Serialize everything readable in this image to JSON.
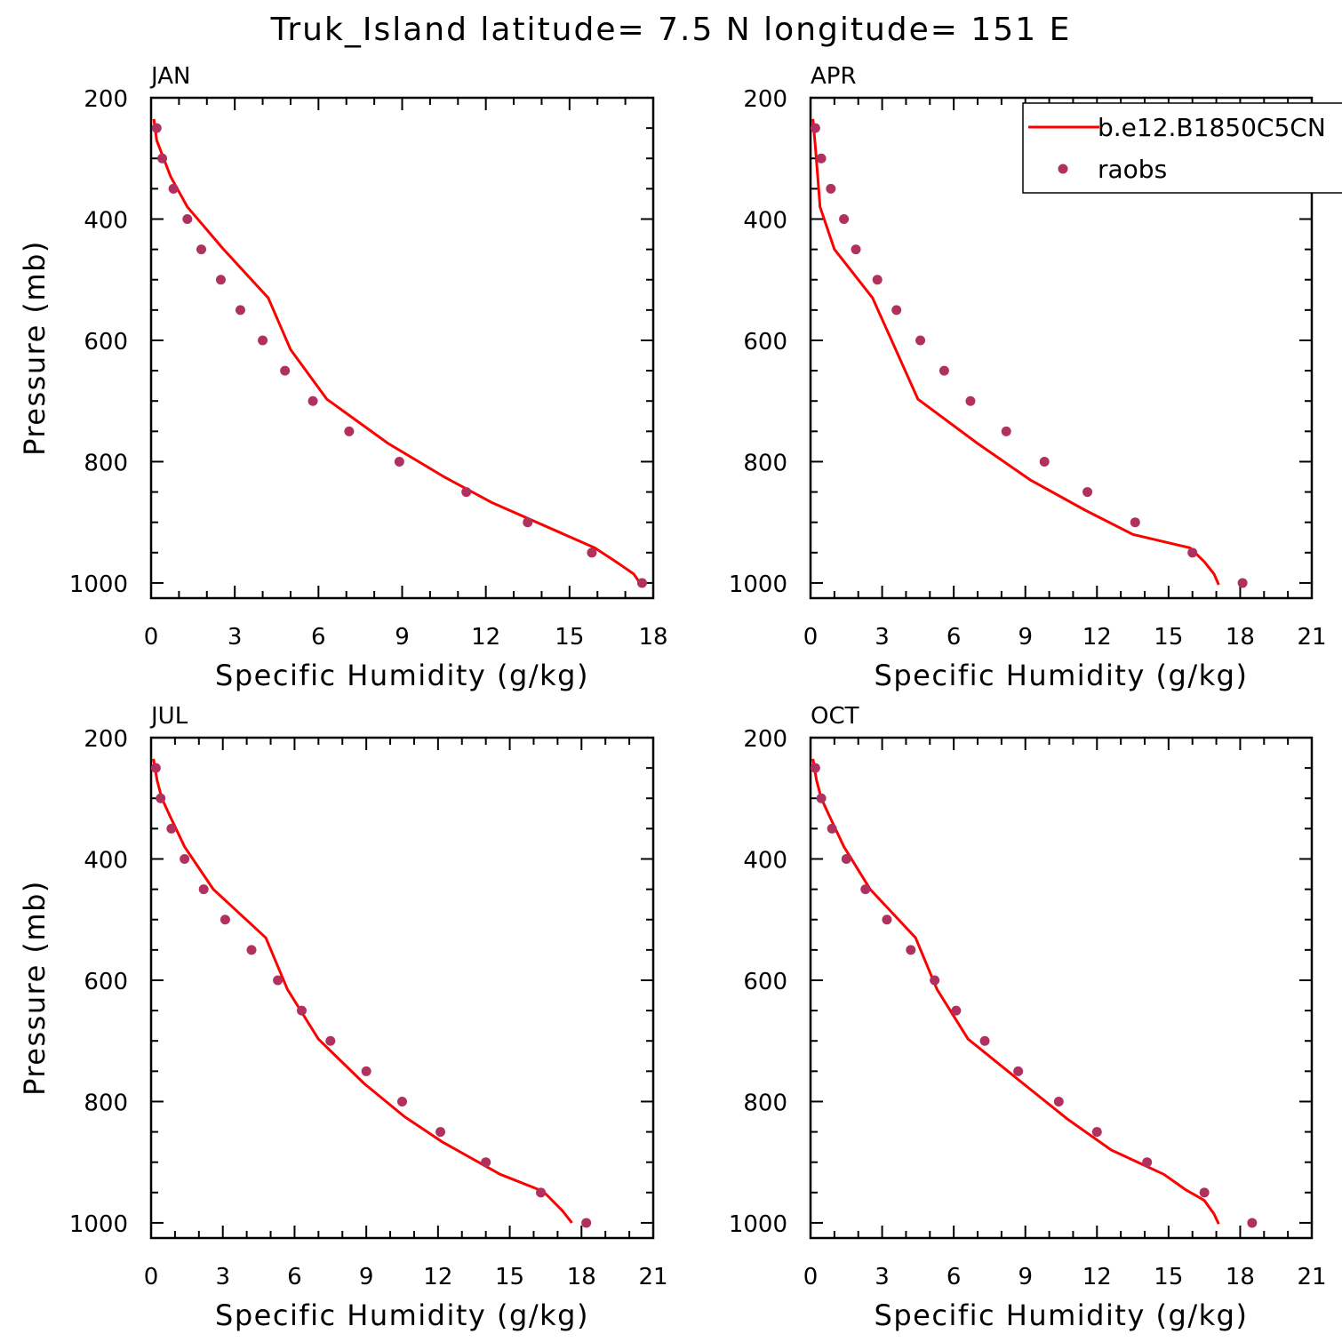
{
  "title": "Truk_Island  latitude= 7.5 N longitude= 151 E",
  "colors": {
    "model": "#ff0000",
    "obs": "#b03060",
    "axis": "#000000"
  },
  "legend": {
    "placement": "top-right of APR panel",
    "model_label": "b.e12.B1850C5CN",
    "obs_label": "raobs"
  },
  "chart_data": [
    {
      "type": "line",
      "panel": "JAN",
      "xlabel": "Specific Humidity (g/kg)",
      "ylabel": "Pressure (mb)",
      "xlim": [
        0,
        18
      ],
      "ylim": [
        1025,
        200
      ],
      "xticks": [
        "0",
        "3",
        "6",
        "9",
        "12",
        "15",
        "18"
      ],
      "yticks": [
        "200",
        "400",
        "600",
        "800",
        "1000"
      ],
      "series": [
        {
          "name": "b.e12.B1850C5CN",
          "style": "line",
          "points": [
            [
              0.1,
              235
            ],
            [
              0.2,
              270
            ],
            [
              0.45,
              300
            ],
            [
              0.7,
              330
            ],
            [
              1.3,
              380
            ],
            [
              2.6,
              450
            ],
            [
              4.2,
              530
            ],
            [
              5.0,
              615
            ],
            [
              6.3,
              697
            ],
            [
              8.5,
              770
            ],
            [
              10.5,
              825
            ],
            [
              12.2,
              867
            ],
            [
              15.9,
              942
            ],
            [
              16.6,
              963
            ],
            [
              17.3,
              985
            ],
            [
              17.6,
              1005
            ]
          ]
        },
        {
          "name": "raobs",
          "style": "markers",
          "points": [
            [
              0.2,
              250
            ],
            [
              0.4,
              300
            ],
            [
              0.8,
              350
            ],
            [
              1.3,
              400
            ],
            [
              1.8,
              450
            ],
            [
              2.5,
              500
            ],
            [
              3.2,
              550
            ],
            [
              4.0,
              600
            ],
            [
              4.8,
              650
            ],
            [
              5.8,
              700
            ],
            [
              7.1,
              750
            ],
            [
              8.9,
              800
            ],
            [
              11.3,
              850
            ],
            [
              13.5,
              900
            ],
            [
              15.8,
              950
            ],
            [
              17.6,
              1000
            ]
          ]
        }
      ]
    },
    {
      "type": "line",
      "panel": "APR",
      "xlabel": "Specific Humidity (g/kg)",
      "ylabel": "",
      "xlim": [
        0,
        21
      ],
      "ylim": [
        1025,
        200
      ],
      "xticks": [
        "0",
        "3",
        "6",
        "9",
        "12",
        "15",
        "18",
        "21"
      ],
      "yticks": [
        "200",
        "400",
        "600",
        "800",
        "1000"
      ],
      "series": [
        {
          "name": "b.e12.B1850C5CN",
          "style": "line",
          "points": [
            [
              0.1,
              235
            ],
            [
              0.2,
              280
            ],
            [
              0.3,
              330
            ],
            [
              0.4,
              380
            ],
            [
              1.0,
              450
            ],
            [
              2.6,
              530
            ],
            [
              4.5,
              697
            ],
            [
              7.0,
              770
            ],
            [
              9.2,
              830
            ],
            [
              11.5,
              880
            ],
            [
              13.5,
              920
            ],
            [
              15.9,
              942
            ],
            [
              16.5,
              965
            ],
            [
              16.9,
              985
            ],
            [
              17.1,
              1003
            ]
          ]
        },
        {
          "name": "raobs",
          "style": "markers",
          "points": [
            [
              0.2,
              250
            ],
            [
              0.45,
              300
            ],
            [
              0.85,
              350
            ],
            [
              1.4,
              400
            ],
            [
              1.9,
              450
            ],
            [
              2.8,
              500
            ],
            [
              3.6,
              550
            ],
            [
              4.6,
              600
            ],
            [
              5.6,
              650
            ],
            [
              6.7,
              700
            ],
            [
              8.2,
              750
            ],
            [
              9.8,
              800
            ],
            [
              11.6,
              850
            ],
            [
              13.6,
              900
            ],
            [
              16.0,
              950
            ],
            [
              18.1,
              1000
            ]
          ]
        }
      ]
    },
    {
      "type": "line",
      "panel": "JUL",
      "xlabel": "Specific Humidity (g/kg)",
      "ylabel": "Pressure (mb)",
      "xlim": [
        0,
        21
      ],
      "ylim": [
        1025,
        200
      ],
      "xticks": [
        "0",
        "3",
        "6",
        "9",
        "12",
        "15",
        "18",
        "21"
      ],
      "yticks": [
        "200",
        "400",
        "600",
        "800",
        "1000"
      ],
      "series": [
        {
          "name": "b.e12.B1850C5CN",
          "style": "line",
          "points": [
            [
              0.1,
              235
            ],
            [
              0.25,
              270
            ],
            [
              0.45,
              300
            ],
            [
              0.8,
              330
            ],
            [
              1.4,
              380
            ],
            [
              2.6,
              450
            ],
            [
              4.8,
              530
            ],
            [
              5.7,
              615
            ],
            [
              7.0,
              697
            ],
            [
              8.9,
              770
            ],
            [
              10.6,
              825
            ],
            [
              12.2,
              867
            ],
            [
              14.6,
              920
            ],
            [
              16.4,
              948
            ],
            [
              17.2,
              980
            ],
            [
              17.6,
              1000
            ]
          ]
        },
        {
          "name": "raobs",
          "style": "markers",
          "points": [
            [
              0.2,
              250
            ],
            [
              0.4,
              300
            ],
            [
              0.85,
              350
            ],
            [
              1.4,
              400
            ],
            [
              2.2,
              450
            ],
            [
              3.1,
              500
            ],
            [
              4.2,
              550
            ],
            [
              5.3,
              600
            ],
            [
              6.3,
              650
            ],
            [
              7.5,
              700
            ],
            [
              9.0,
              750
            ],
            [
              10.5,
              800
            ],
            [
              12.1,
              850
            ],
            [
              14.0,
              900
            ],
            [
              16.3,
              950
            ],
            [
              18.2,
              1000
            ]
          ]
        }
      ]
    },
    {
      "type": "line",
      "panel": "OCT",
      "xlabel": "Specific Humidity (g/kg)",
      "ylabel": "",
      "xlim": [
        0,
        21
      ],
      "ylim": [
        1025,
        200
      ],
      "xticks": [
        "0",
        "3",
        "6",
        "9",
        "12",
        "15",
        "18",
        "21"
      ],
      "yticks": [
        "200",
        "400",
        "600",
        "800",
        "1000"
      ],
      "series": [
        {
          "name": "b.e12.B1850C5CN",
          "style": "line",
          "points": [
            [
              0.1,
              235
            ],
            [
              0.25,
              270
            ],
            [
              0.45,
              300
            ],
            [
              0.8,
              330
            ],
            [
              1.4,
              380
            ],
            [
              2.5,
              450
            ],
            [
              4.4,
              530
            ],
            [
              5.3,
              615
            ],
            [
              6.6,
              697
            ],
            [
              8.9,
              770
            ],
            [
              10.8,
              830
            ],
            [
              12.6,
              880
            ],
            [
              14.8,
              920
            ],
            [
              15.7,
              945
            ],
            [
              16.5,
              963
            ],
            [
              16.9,
              985
            ],
            [
              17.1,
              1002
            ]
          ]
        },
        {
          "name": "raobs",
          "style": "markers",
          "points": [
            [
              0.2,
              250
            ],
            [
              0.45,
              300
            ],
            [
              0.9,
              350
            ],
            [
              1.5,
              400
            ],
            [
              2.3,
              450
            ],
            [
              3.2,
              500
            ],
            [
              4.2,
              550
            ],
            [
              5.2,
              600
            ],
            [
              6.1,
              650
            ],
            [
              7.3,
              700
            ],
            [
              8.7,
              750
            ],
            [
              10.4,
              800
            ],
            [
              12.0,
              850
            ],
            [
              14.1,
              900
            ],
            [
              16.5,
              950
            ],
            [
              18.5,
              1000
            ]
          ]
        }
      ]
    }
  ]
}
